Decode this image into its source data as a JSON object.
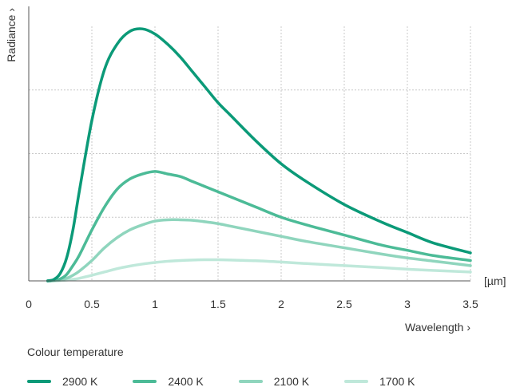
{
  "chart_data": {
    "type": "line",
    "title": "",
    "xlabel": "Wavelength",
    "ylabel": "Radiance",
    "x_unit": "[µm]",
    "xlim": [
      0,
      3.5
    ],
    "ylim": [
      0,
      1
    ],
    "x_ticks": [
      "0",
      "0.5",
      "1",
      "1.5",
      "2",
      "2.5",
      "3",
      "3.5"
    ],
    "grid": true,
    "legend_title": "Colour temperature",
    "legend_position": "bottom",
    "x": [
      0.15,
      0.2,
      0.25,
      0.3,
      0.35,
      0.4,
      0.5,
      0.6,
      0.7,
      0.8,
      0.9,
      1.0,
      1.1,
      1.2,
      1.3,
      1.4,
      1.5,
      1.6,
      1.8,
      2.0,
      2.2,
      2.5,
      2.8,
      3.0,
      3.2,
      3.5
    ],
    "series": [
      {
        "name": "2900 K",
        "color": "#0b9a78",
        "values": [
          0.0,
          0.006,
          0.03,
          0.09,
          0.2,
          0.35,
          0.63,
          0.83,
          0.93,
          0.98,
          0.99,
          0.97,
          0.93,
          0.88,
          0.82,
          0.76,
          0.7,
          0.65,
          0.55,
          0.46,
          0.39,
          0.3,
          0.23,
          0.19,
          0.15,
          0.11
        ]
      },
      {
        "name": "2400 K",
        "color": "#4cbb97",
        "values": [
          0.0,
          0.002,
          0.008,
          0.025,
          0.06,
          0.1,
          0.2,
          0.29,
          0.36,
          0.4,
          0.42,
          0.43,
          0.42,
          0.41,
          0.39,
          0.37,
          0.35,
          0.33,
          0.29,
          0.25,
          0.22,
          0.18,
          0.14,
          0.12,
          0.1,
          0.08
        ]
      },
      {
        "name": "2100 K",
        "color": "#8fd5bd",
        "values": [
          0.0,
          0.001,
          0.003,
          0.01,
          0.022,
          0.038,
          0.08,
          0.13,
          0.17,
          0.2,
          0.22,
          0.235,
          0.24,
          0.24,
          0.238,
          0.232,
          0.225,
          0.215,
          0.195,
          0.175,
          0.155,
          0.13,
          0.105,
          0.09,
          0.078,
          0.06
        ]
      },
      {
        "name": "1700 K",
        "color": "#bfe8da",
        "values": [
          0.0,
          0.0005,
          0.001,
          0.003,
          0.006,
          0.01,
          0.022,
          0.035,
          0.048,
          0.058,
          0.066,
          0.072,
          0.077,
          0.08,
          0.082,
          0.083,
          0.083,
          0.082,
          0.079,
          0.074,
          0.068,
          0.06,
          0.052,
          0.046,
          0.041,
          0.035
        ]
      }
    ]
  }
}
